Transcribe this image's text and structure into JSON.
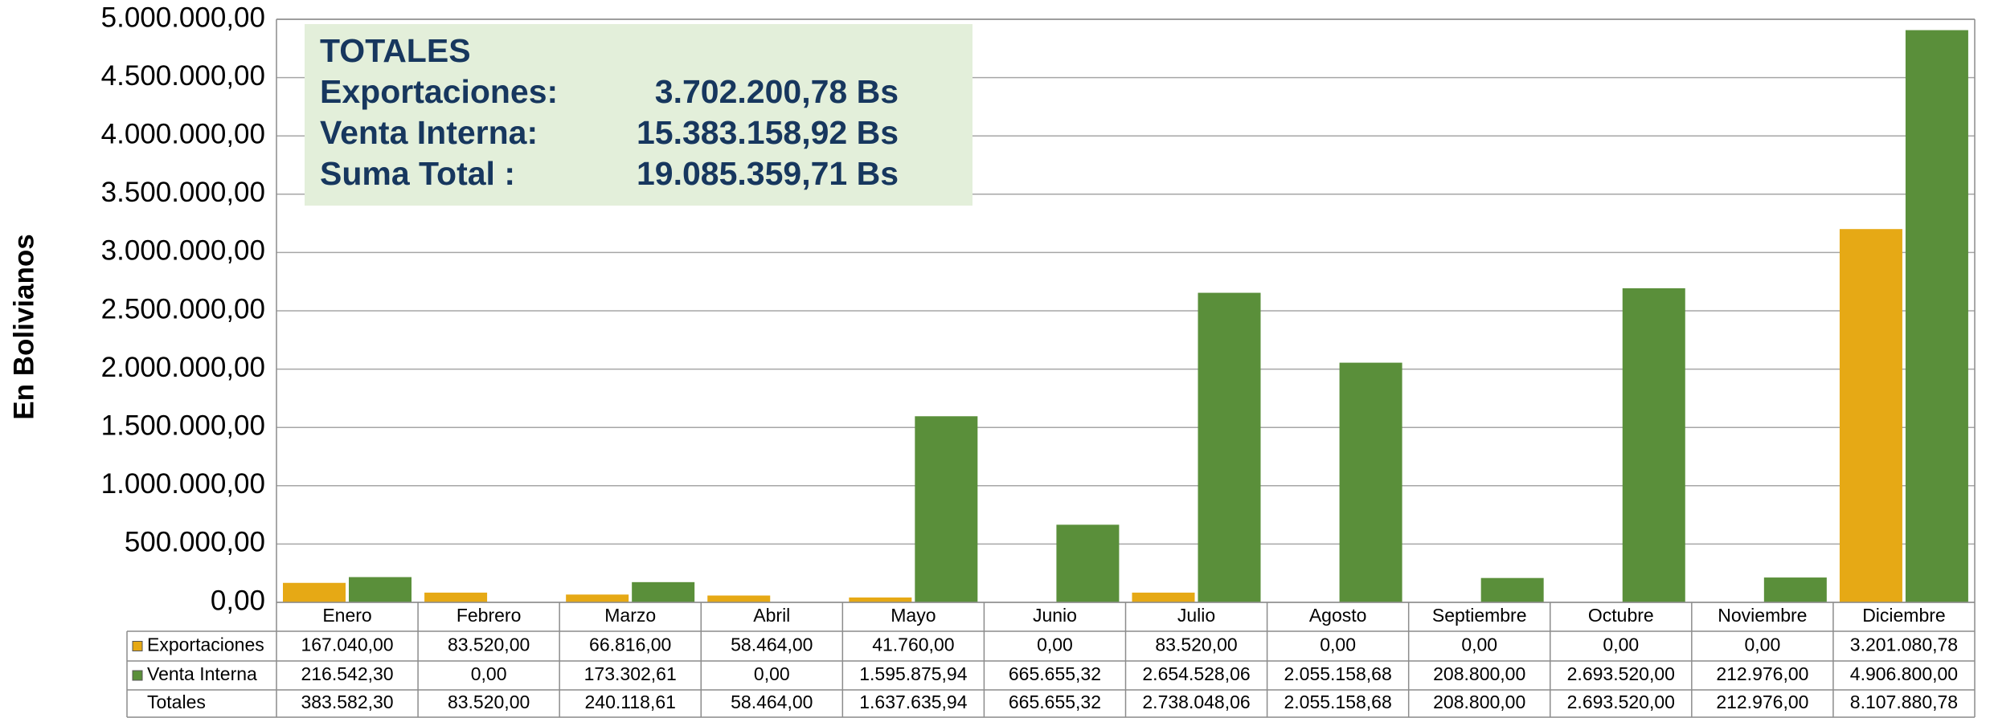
{
  "chart_data": {
    "type": "bar",
    "ylabel": "En Bolivianos",
    "categories": [
      "Enero",
      "Febrero",
      "Marzo",
      "Abril",
      "Mayo",
      "Junio",
      "Julio",
      "Agosto",
      "Septiembre",
      "Octubre",
      "Noviembre",
      "Diciembre"
    ],
    "series": [
      {
        "name": "Exportaciones",
        "color": "#e6a915",
        "values": [
          167040,
          83520,
          66816,
          58464,
          41760,
          0,
          83520,
          0,
          0,
          0,
          0,
          3201080.78
        ],
        "value_labels": [
          "167.040,00",
          "83.520,00",
          "66.816,00",
          "58.464,00",
          "41.760,00",
          "0,00",
          "83.520,00",
          "0,00",
          "0,00",
          "0,00",
          "0,00",
          "3.201.080,78"
        ]
      },
      {
        "name": "Venta Interna",
        "color": "#5a8f3a",
        "values": [
          216542.3,
          0,
          173302.61,
          0,
          1595875.94,
          665655.32,
          2654528.06,
          2055158.68,
          208800,
          2693520,
          212976,
          4906800
        ],
        "value_labels": [
          "216.542,30",
          "0,00",
          "173.302,61",
          "0,00",
          "1.595.875,94",
          "665.655,32",
          "2.654.528,06",
          "2.055.158,68",
          "208.800,00",
          "2.693.520,00",
          "212.976,00",
          "4.906.800,00"
        ]
      }
    ],
    "totals": {
      "name": "Totales",
      "values": [
        "383.582,30",
        "83.520,00",
        "240.118,61",
        "58.464,00",
        "1.637.635,94",
        "665.655,32",
        "2.738.048,06",
        "2.055.158,68",
        "208.800,00",
        "2.693.520,00",
        "212.976,00",
        "8.107.880,78"
      ]
    },
    "ylim": [
      0,
      5000000
    ],
    "yticks": [
      {
        "value": 0,
        "label": "0,00"
      },
      {
        "value": 500000,
        "label": "500.000,00"
      },
      {
        "value": 1000000,
        "label": "1.000.000,00"
      },
      {
        "value": 1500000,
        "label": "1.500.000,00"
      },
      {
        "value": 2000000,
        "label": "2.000.000,00"
      },
      {
        "value": 2500000,
        "label": "2.500.000,00"
      },
      {
        "value": 3000000,
        "label": "3.000.000,00"
      },
      {
        "value": 3500000,
        "label": "3.500.000,00"
      },
      {
        "value": 4000000,
        "label": "4.000.000,00"
      },
      {
        "value": 4500000,
        "label": "4.500.000,00"
      },
      {
        "value": 5000000,
        "label": "5.000.000,00"
      }
    ],
    "grid": true,
    "summary": {
      "title": "TOTALES",
      "rows": [
        {
          "label": "Exportaciones:",
          "value": "3.702.200,78 Bs"
        },
        {
          "label": "Venta Interna:",
          "value": "15.383.158,92 Bs"
        },
        {
          "label": "Suma Total :",
          "value": "19.085.359,71 Bs"
        }
      ]
    }
  }
}
